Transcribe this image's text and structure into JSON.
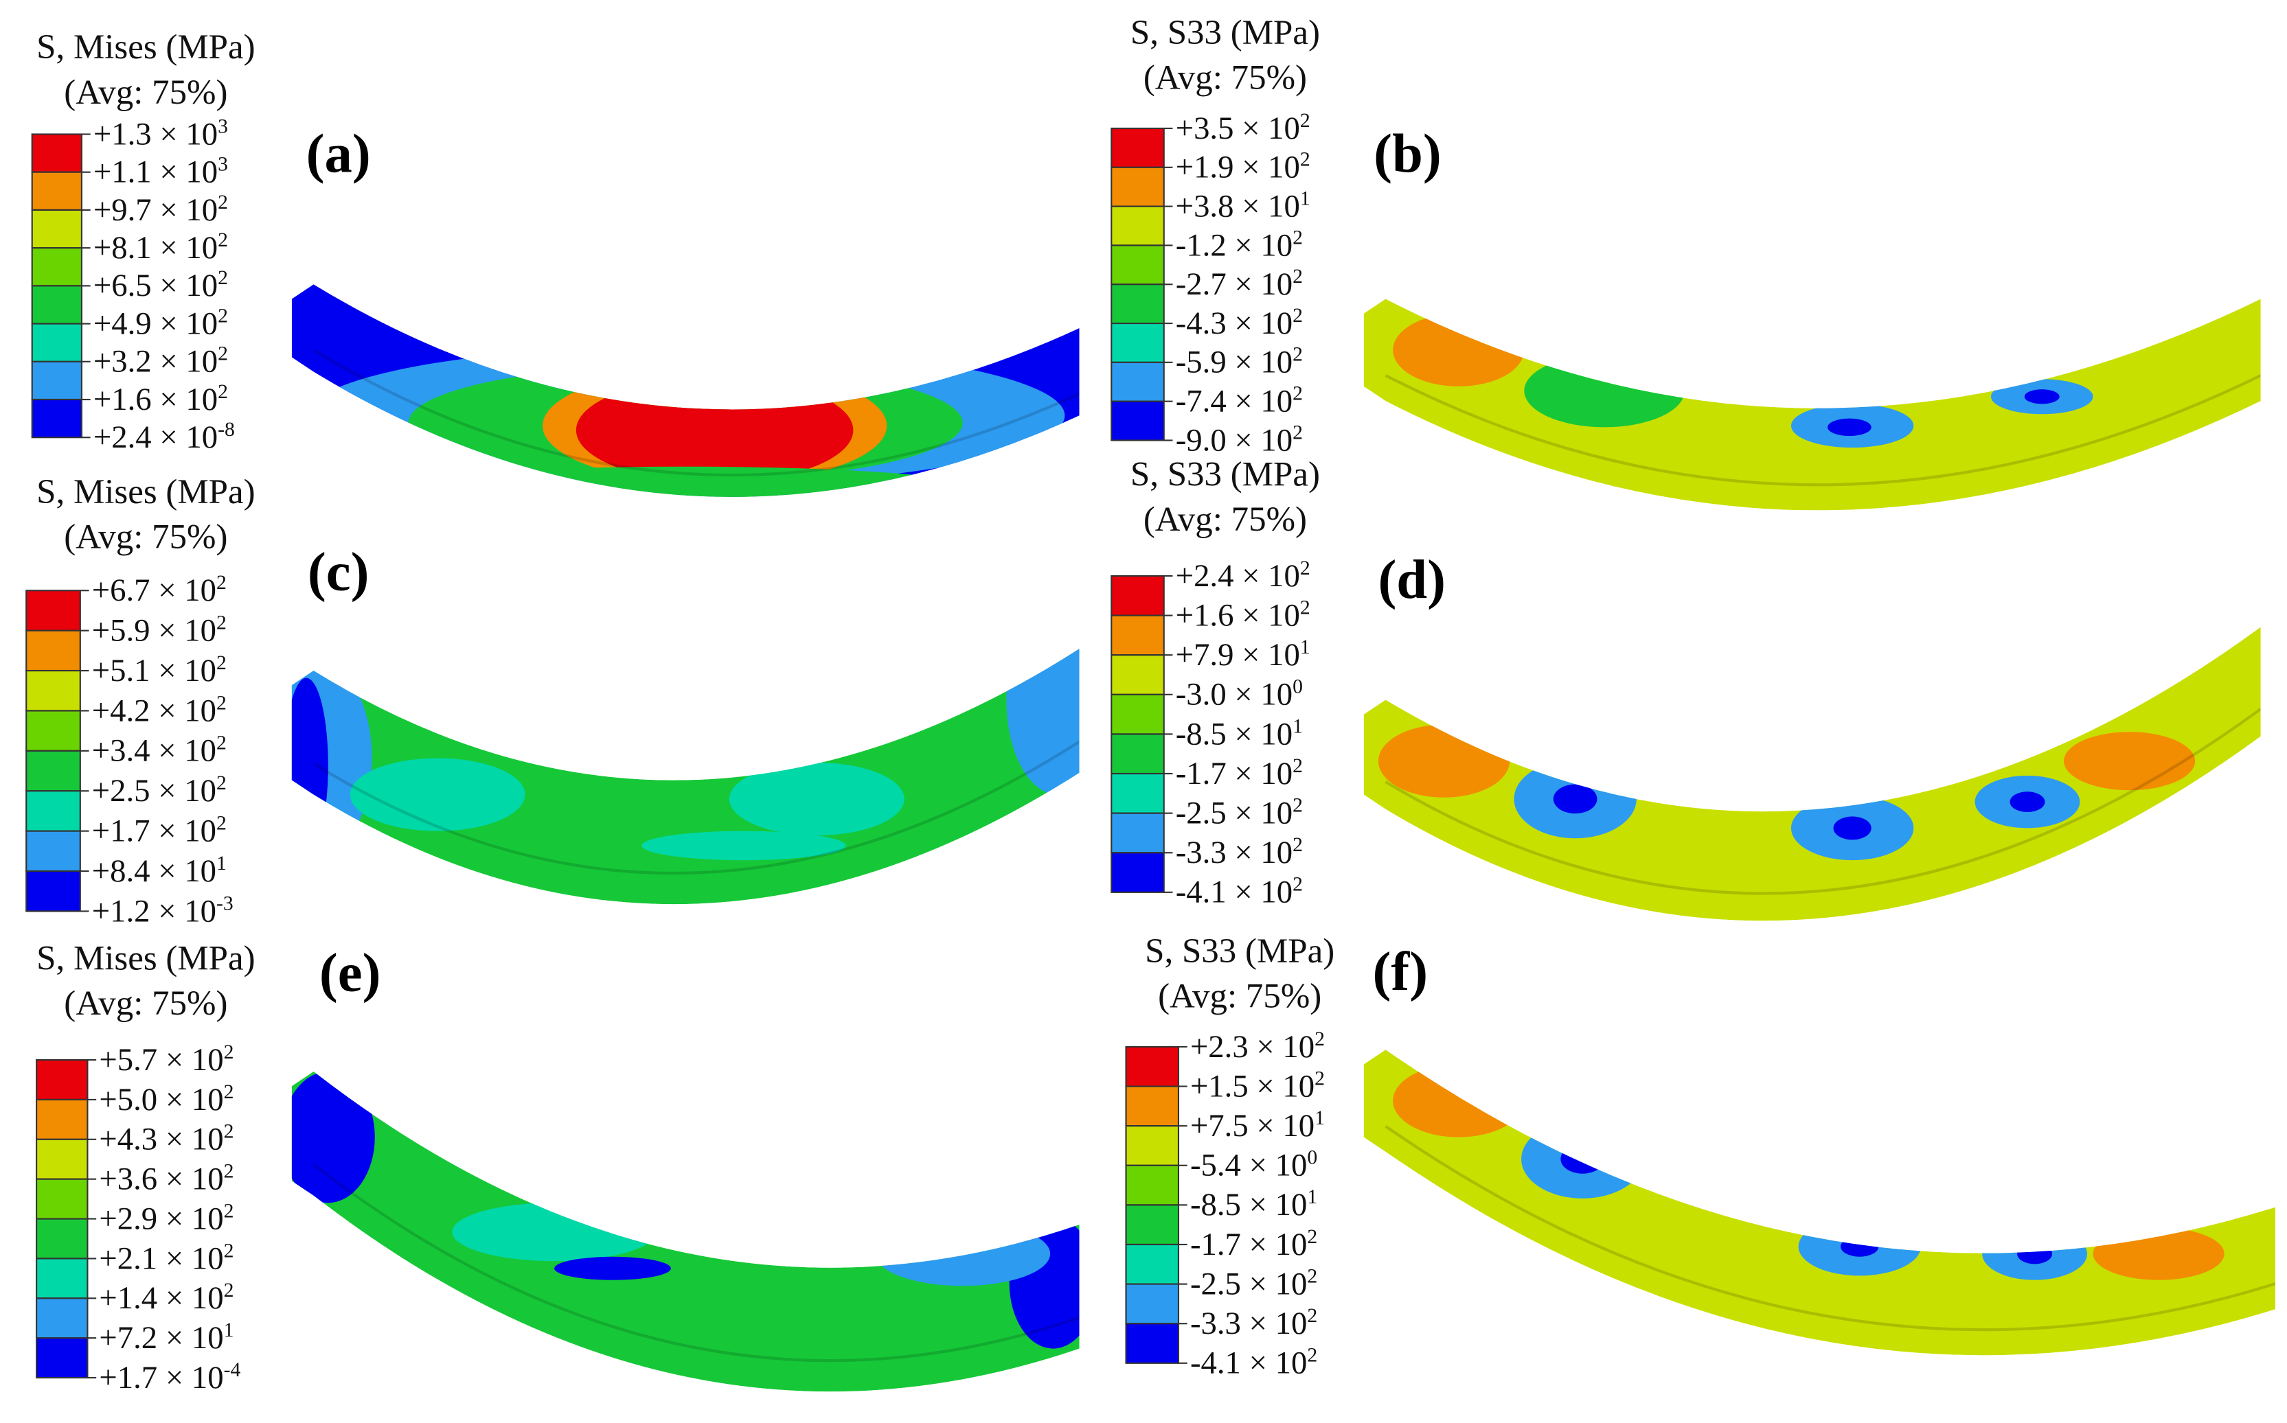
{
  "panels": [
    {
      "label": "(a)",
      "title": "S, Mises (MPa)",
      "subtitle": "(Avg: 75%)",
      "scale": [
        {
          "mantissa": "+1.3 × 10",
          "exponent": "3"
        },
        {
          "mantissa": "+1.1 × 10",
          "exponent": "3"
        },
        {
          "mantissa": "+9.7 × 10",
          "exponent": "2"
        },
        {
          "mantissa": "+8.1 × 10",
          "exponent": "2"
        },
        {
          "mantissa": "+6.5 × 10",
          "exponent": "2"
        },
        {
          "mantissa": "+4.9 × 10",
          "exponent": "2"
        },
        {
          "mantissa": "+3.2 × 10",
          "exponent": "2"
        },
        {
          "mantissa": "+1.6 × 10",
          "exponent": "2"
        },
        {
          "mantissa": "+2.4 × 10",
          "exponent": "-8"
        }
      ]
    },
    {
      "label": "(b)",
      "title": "S, S33 (MPa)",
      "subtitle": "(Avg: 75%)",
      "scale": [
        {
          "mantissa": "+3.5 × 10",
          "exponent": "2"
        },
        {
          "mantissa": "+1.9 × 10",
          "exponent": "2"
        },
        {
          "mantissa": "+3.8 × 10",
          "exponent": "1"
        },
        {
          "mantissa": "-1.2 × 10",
          "exponent": "2"
        },
        {
          "mantissa": "-2.7 × 10",
          "exponent": "2"
        },
        {
          "mantissa": "-4.3 × 10",
          "exponent": "2"
        },
        {
          "mantissa": "-5.9 × 10",
          "exponent": "2"
        },
        {
          "mantissa": "-7.4 × 10",
          "exponent": "2"
        },
        {
          "mantissa": "-9.0 × 10",
          "exponent": "2"
        }
      ]
    },
    {
      "label": "(c)",
      "title": "S, Mises (MPa)",
      "subtitle": "(Avg: 75%)",
      "scale": [
        {
          "mantissa": "+6.7 × 10",
          "exponent": "2"
        },
        {
          "mantissa": "+5.9 × 10",
          "exponent": "2"
        },
        {
          "mantissa": "+5.1 × 10",
          "exponent": "2"
        },
        {
          "mantissa": "+4.2 × 10",
          "exponent": "2"
        },
        {
          "mantissa": "+3.4 × 10",
          "exponent": "2"
        },
        {
          "mantissa": "+2.5 × 10",
          "exponent": "2"
        },
        {
          "mantissa": "+1.7 × 10",
          "exponent": "2"
        },
        {
          "mantissa": "+8.4 × 10",
          "exponent": "1"
        },
        {
          "mantissa": "+1.2 × 10",
          "exponent": "-3"
        }
      ]
    },
    {
      "label": "(d)",
      "title": "S, S33 (MPa)",
      "subtitle": "(Avg: 75%)",
      "scale": [
        {
          "mantissa": "+2.4 × 10",
          "exponent": "2"
        },
        {
          "mantissa": "+1.6 × 10",
          "exponent": "2"
        },
        {
          "mantissa": "+7.9 × 10",
          "exponent": "1"
        },
        {
          "mantissa": "-3.0 × 10",
          "exponent": "0"
        },
        {
          "mantissa": "-8.5 × 10",
          "exponent": "1"
        },
        {
          "mantissa": "-1.7 × 10",
          "exponent": "2"
        },
        {
          "mantissa": "-2.5 × 10",
          "exponent": "2"
        },
        {
          "mantissa": "-3.3 × 10",
          "exponent": "2"
        },
        {
          "mantissa": "-4.1 × 10",
          "exponent": "2"
        }
      ]
    },
    {
      "label": "(e)",
      "title": "S, Mises (MPa)",
      "subtitle": "(Avg: 75%)",
      "scale": [
        {
          "mantissa": "+5.7 × 10",
          "exponent": "2"
        },
        {
          "mantissa": "+5.0 × 10",
          "exponent": "2"
        },
        {
          "mantissa": "+4.3 × 10",
          "exponent": "2"
        },
        {
          "mantissa": "+3.6 × 10",
          "exponent": "2"
        },
        {
          "mantissa": "+2.9 × 10",
          "exponent": "2"
        },
        {
          "mantissa": "+2.1 × 10",
          "exponent": "2"
        },
        {
          "mantissa": "+1.4 × 10",
          "exponent": "2"
        },
        {
          "mantissa": "+7.2 × 10",
          "exponent": "1"
        },
        {
          "mantissa": "+1.7 × 10",
          "exponent": "-4"
        }
      ]
    },
    {
      "label": "(f)",
      "title": "S, S33 (MPa)",
      "subtitle": "(Avg: 75%)",
      "scale": [
        {
          "mantissa": "+2.3 × 10",
          "exponent": "2"
        },
        {
          "mantissa": "+1.5 × 10",
          "exponent": "2"
        },
        {
          "mantissa": "+7.5 × 10",
          "exponent": "1"
        },
        {
          "mantissa": "-5.4 × 10",
          "exponent": "0"
        },
        {
          "mantissa": "-8.5 × 10",
          "exponent": "1"
        },
        {
          "mantissa": "-1.7 × 10",
          "exponent": "2"
        },
        {
          "mantissa": "-2.5 × 10",
          "exponent": "2"
        },
        {
          "mantissa": "-3.3 × 10",
          "exponent": "2"
        },
        {
          "mantissa": "-4.1 × 10",
          "exponent": "2"
        }
      ]
    }
  ]
}
